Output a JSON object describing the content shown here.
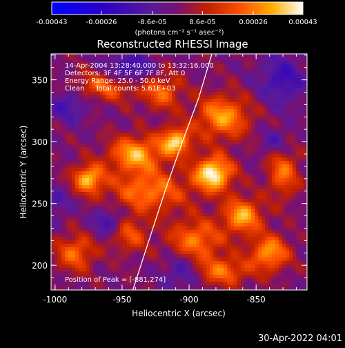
{
  "chart_data": {
    "type": "heatmap",
    "title": "Reconstructed RHESSI Image",
    "xlabel": "Heliocentric X (arcsec)",
    "ylabel": "Heliocentric Y (arcsec)",
    "xlim": [
      -1003,
      -812
    ],
    "ylim": [
      180,
      371
    ],
    "x_ticks": [
      "-1000",
      "-950",
      "-900",
      "-850"
    ],
    "x_tick_values": [
      -1000,
      -950,
      -900,
      -850
    ],
    "y_ticks": [
      "350",
      "300",
      "250",
      "200"
    ],
    "y_tick_values": [
      350,
      300,
      250,
      200
    ],
    "colorbar": {
      "tick_labels": [
        "-0.00043",
        "-0.00026",
        "-8.6e-05",
        "8.6e-05",
        "0.00026",
        "0.00043"
      ],
      "tick_values": [
        -0.00043,
        -0.00026,
        -8.6e-05,
        8.6e-05,
        0.00026,
        0.00043
      ],
      "unit_label": "(photons cm⁻² s⁻¹ asec⁻²)",
      "range": [
        -0.00043,
        0.00043
      ]
    },
    "annotations": [
      "14-Apr-2004 13:28:40.000 to 13:32:16.000",
      "Detectors: 3F 4F 5F 6F 7F 8F, Att 0",
      "Energy Range: 25.0 - 50.0 keV",
      "Clean     Total counts: 5.61E+03"
    ],
    "peak_label": "Position of Peak = [-881,274]",
    "peak": [
      -881,
      274
    ],
    "limb_curve": [
      [
        -942,
        180
      ],
      [
        -930,
        220
      ],
      [
        -918,
        260
      ],
      [
        -905,
        300
      ],
      [
        -893,
        335
      ],
      [
        -883,
        371
      ]
    ],
    "hotspots": [
      {
        "x": -882,
        "y": 274,
        "amp": 1.0,
        "sx": 10,
        "sy": 10
      },
      {
        "x": -910,
        "y": 300,
        "amp": 0.85,
        "sx": 8,
        "sy": 8
      },
      {
        "x": -940,
        "y": 290,
        "amp": 0.75,
        "sx": 14,
        "sy": 10
      },
      {
        "x": -975,
        "y": 270,
        "amp": 0.8,
        "sx": 8,
        "sy": 8
      },
      {
        "x": -875,
        "y": 320,
        "amp": 0.7,
        "sx": 14,
        "sy": 12
      },
      {
        "x": -930,
        "y": 260,
        "amp": 0.6,
        "sx": 20,
        "sy": 12
      },
      {
        "x": -860,
        "y": 240,
        "amp": 0.75,
        "sx": 10,
        "sy": 10
      },
      {
        "x": -840,
        "y": 210,
        "amp": 0.7,
        "sx": 10,
        "sy": 10
      },
      {
        "x": -895,
        "y": 220,
        "amp": 0.6,
        "sx": 14,
        "sy": 12
      },
      {
        "x": -960,
        "y": 345,
        "amp": 0.55,
        "sx": 18,
        "sy": 8
      },
      {
        "x": -920,
        "y": 340,
        "amp": 0.5,
        "sx": 10,
        "sy": 10
      },
      {
        "x": -985,
        "y": 210,
        "amp": 0.55,
        "sx": 10,
        "sy": 10
      },
      {
        "x": -875,
        "y": 195,
        "amp": 0.55,
        "sx": 14,
        "sy": 8
      },
      {
        "x": -945,
        "y": 225,
        "amp": 0.45,
        "sx": 10,
        "sy": 10
      },
      {
        "x": -830,
        "y": 275,
        "amp": 0.55,
        "sx": 8,
        "sy": 14
      }
    ],
    "coldspots": [
      {
        "x": -945,
        "y": 358,
        "amp": 0.7,
        "sx": 12,
        "sy": 10
      },
      {
        "x": -990,
        "y": 330,
        "amp": 0.5,
        "sx": 10,
        "sy": 10
      },
      {
        "x": -960,
        "y": 235,
        "amp": 0.6,
        "sx": 8,
        "sy": 8
      },
      {
        "x": -830,
        "y": 350,
        "amp": 0.6,
        "sx": 12,
        "sy": 14
      },
      {
        "x": -835,
        "y": 300,
        "amp": 0.4,
        "sx": 8,
        "sy": 8
      },
      {
        "x": -905,
        "y": 195,
        "amp": 0.5,
        "sx": 10,
        "sy": 10
      },
      {
        "x": -1000,
        "y": 250,
        "amp": 0.4,
        "sx": 8,
        "sy": 8
      }
    ]
  },
  "footer": {
    "date": "30-Apr-2022 04:01"
  }
}
